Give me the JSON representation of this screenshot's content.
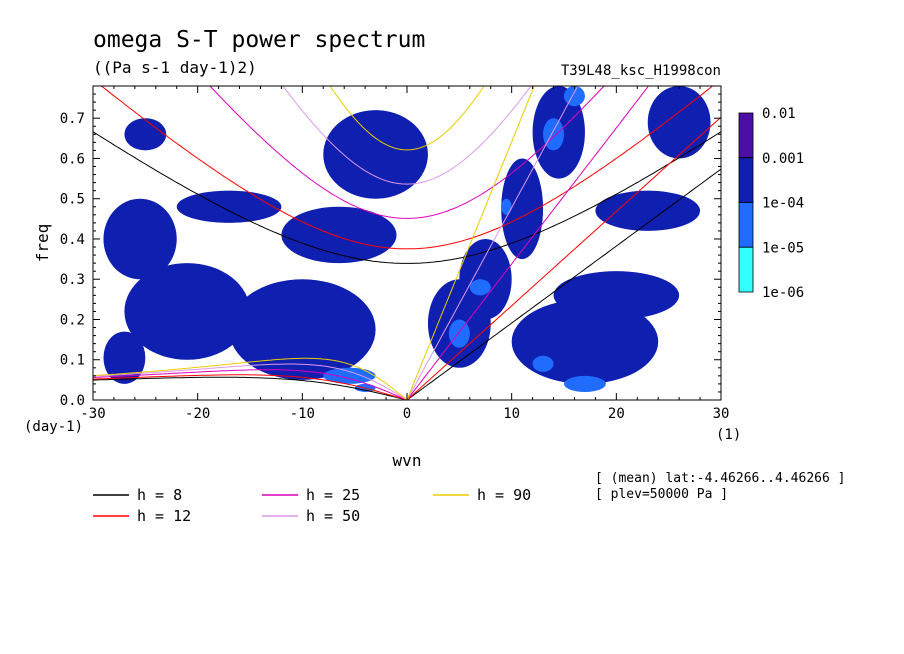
{
  "chart_data": {
    "type": "heatmap",
    "title": "omega S-T power spectrum",
    "subtitle": "((Pa s-1 day-1)2)",
    "run_label": "T39L48_ksc_H1998con",
    "xlabel": "wvn",
    "ylabel": "freq",
    "x_unit": "(1)",
    "y_unit": "(day-1)",
    "xlim": [
      -30,
      30
    ],
    "ylim": [
      0,
      0.78
    ],
    "xticks": [
      -30,
      -20,
      -10,
      0,
      10,
      20,
      30
    ],
    "xtick_labels": [
      "-30",
      "-20",
      "-10",
      "0",
      "10",
      "20",
      "30"
    ],
    "yticks": [
      0,
      0.1,
      0.2,
      0.3,
      0.4,
      0.5,
      0.6,
      0.7
    ],
    "ytick_labels": [
      "0.0",
      "0.1",
      "0.2",
      "0.3",
      "0.4",
      "0.5",
      "0.6",
      "0.7"
    ],
    "colorbar": {
      "levels": [
        "0.01",
        "0.001",
        "1e-04",
        "1e-05",
        "1e-06"
      ],
      "colors": [
        "#4b0fa8",
        "#0f1fb0",
        "#1f6cff",
        "#33ffff"
      ]
    },
    "contour_regions": [
      {
        "x": [
          -29,
          -25
        ],
        "y": [
          0.04,
          0.17
        ],
        "level": "1e-05"
      },
      {
        "x": [
          -27,
          -15
        ],
        "y": [
          0.1,
          0.34
        ],
        "level": "1e-05"
      },
      {
        "x": [
          -17,
          -3
        ],
        "y": [
          0.05,
          0.3
        ],
        "level": "1e-05"
      },
      {
        "x": [
          -12,
          -1
        ],
        "y": [
          0.34,
          0.48
        ],
        "level": "1e-05"
      },
      {
        "x": [
          -8,
          2
        ],
        "y": [
          0.5,
          0.72
        ],
        "level": "1e-05"
      },
      {
        "x": [
          -22,
          -12
        ],
        "y": [
          0.44,
          0.52
        ],
        "level": "1e-05"
      },
      {
        "x": [
          -29,
          -22
        ],
        "y": [
          0.3,
          0.5
        ],
        "level": "1e-05"
      },
      {
        "x": [
          -27,
          -23
        ],
        "y": [
          0.62,
          0.7
        ],
        "level": "1e-05"
      },
      {
        "x": [
          2,
          8
        ],
        "y": [
          0.08,
          0.3
        ],
        "level": "1e-05"
      },
      {
        "x": [
          5,
          10
        ],
        "y": [
          0.2,
          0.4
        ],
        "level": "1e-05"
      },
      {
        "x": [
          9,
          13
        ],
        "y": [
          0.35,
          0.6
        ],
        "level": "1e-05"
      },
      {
        "x": [
          12,
          17
        ],
        "y": [
          0.55,
          0.78
        ],
        "level": "1e-05"
      },
      {
        "x": [
          10,
          24
        ],
        "y": [
          0.04,
          0.25
        ],
        "level": "1e-05"
      },
      {
        "x": [
          14,
          26
        ],
        "y": [
          0.2,
          0.32
        ],
        "level": "1e-05"
      },
      {
        "x": [
          18,
          28
        ],
        "y": [
          0.42,
          0.52
        ],
        "level": "1e-05"
      },
      {
        "x": [
          23,
          29
        ],
        "y": [
          0.6,
          0.78
        ],
        "level": "1e-05"
      },
      {
        "x": [
          -8,
          -3
        ],
        "y": [
          0.04,
          0.08
        ],
        "level": "1e-04"
      },
      {
        "x": [
          -5,
          -3
        ],
        "y": [
          0.02,
          0.04
        ],
        "level": "1e-04"
      },
      {
        "x": [
          4,
          6
        ],
        "y": [
          0.13,
          0.2
        ],
        "level": "1e-04"
      },
      {
        "x": [
          6,
          8
        ],
        "y": [
          0.26,
          0.3
        ],
        "level": "1e-04"
      },
      {
        "x": [
          9,
          10
        ],
        "y": [
          0.46,
          0.5
        ],
        "level": "1e-04"
      },
      {
        "x": [
          13,
          15
        ],
        "y": [
          0.62,
          0.7
        ],
        "level": "1e-04"
      },
      {
        "x": [
          15,
          17
        ],
        "y": [
          0.73,
          0.78
        ],
        "level": "1e-04"
      },
      {
        "x": [
          12,
          14
        ],
        "y": [
          0.07,
          0.11
        ],
        "level": "1e-04"
      },
      {
        "x": [
          15,
          19
        ],
        "y": [
          0.02,
          0.06
        ],
        "level": "1e-04"
      }
    ],
    "series": [
      {
        "name": "h =  8",
        "depth": 8,
        "color": "#000000"
      },
      {
        "name": "h = 12",
        "depth": 12,
        "color": "#ff0000"
      },
      {
        "name": "h = 25",
        "depth": 25,
        "color": "#dd00bb"
      },
      {
        "name": "h = 50",
        "depth": 50,
        "color": "#dd99ee"
      },
      {
        "name": "h = 90",
        "depth": 90,
        "color": "#eecc00"
      }
    ],
    "annotations": [
      "[ (mean) lat:-4.46266..4.46266 ]",
      "[ plev=50000 Pa ]"
    ]
  }
}
